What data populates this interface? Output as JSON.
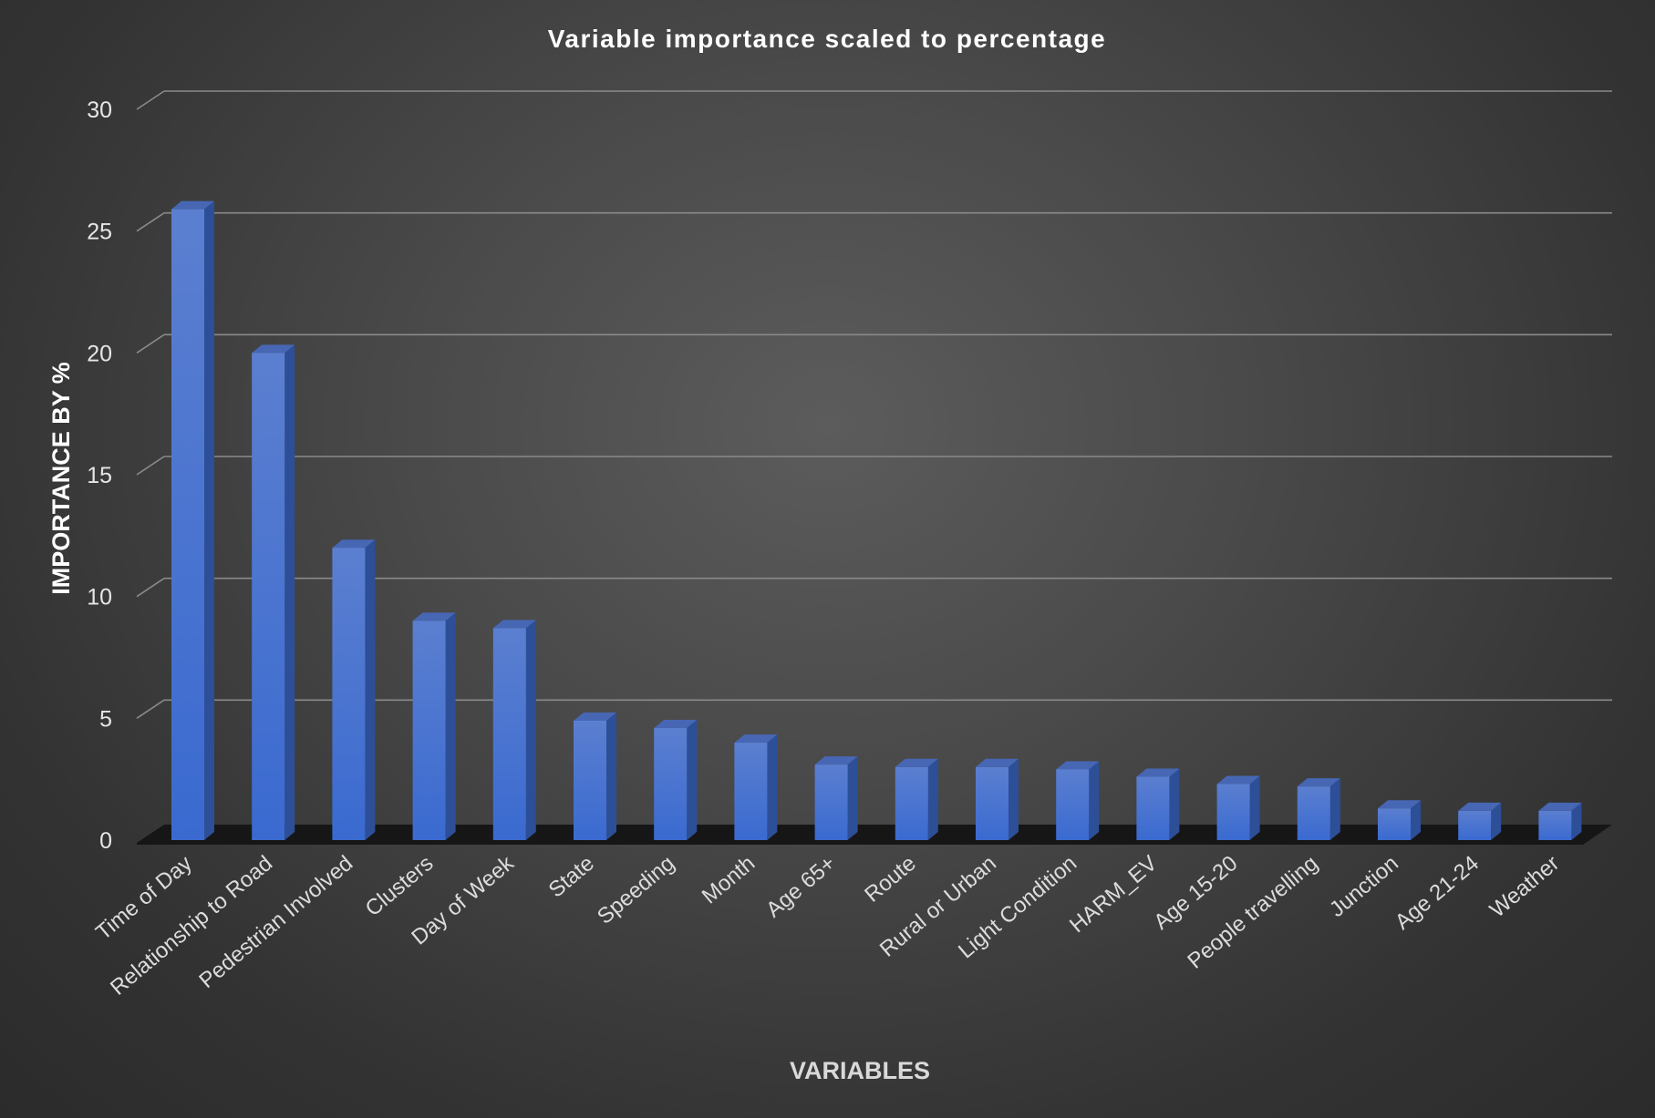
{
  "chart_data": {
    "type": "bar",
    "title": "Variable importance scaled to percentage",
    "xlabel": "VARIABLES",
    "ylabel": "IMPORTANCE BY %",
    "ylim": [
      0,
      30
    ],
    "yticks": [
      0,
      5,
      10,
      15,
      20,
      25,
      30
    ],
    "yticks_labels": [
      "0",
      "5",
      "10",
      "15",
      "20",
      "25",
      "30"
    ],
    "grid": true,
    "legend": "none",
    "categories": [
      "Time of Day",
      "Relationship to Road",
      "Pedestrian Involved",
      "Clusters",
      "Day of Week",
      "State",
      "Speeding",
      "Month",
      "Age 65+",
      "Route",
      "Rural or Urban",
      "Light Condition",
      "HARM_EV",
      "Age 15-20",
      "People travelling",
      "Junction",
      "Age 21-24",
      "Weather"
    ],
    "values": [
      25.9,
      20.0,
      12.0,
      9.0,
      8.7,
      4.9,
      4.6,
      4.0,
      3.1,
      3.0,
      3.0,
      2.9,
      2.6,
      2.3,
      2.2,
      1.3,
      1.2,
      1.2
    ],
    "colors": {
      "bar_top": "#5b7fd0",
      "bar_bottom": "#3a6ad0",
      "bar_side": "#2d4f98",
      "bar_cap": "#4767b4",
      "gridline": "#8a8a8a",
      "floor": "#161616"
    }
  }
}
